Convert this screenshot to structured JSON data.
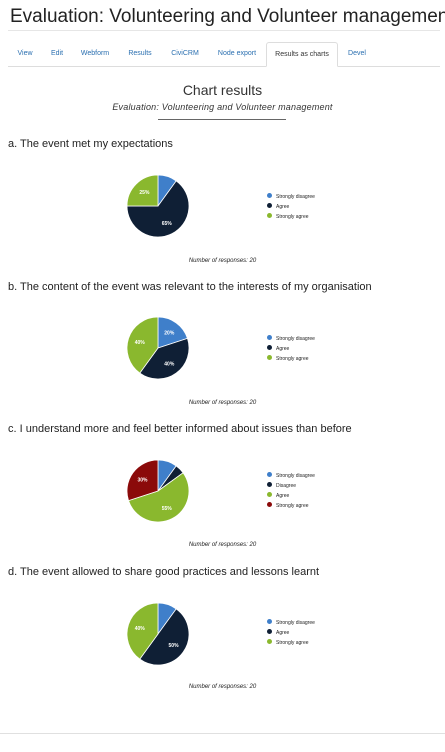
{
  "page": {
    "title": "Evaluation: Volunteering and Volunteer management"
  },
  "tabs": [
    {
      "label": "View",
      "active": false
    },
    {
      "label": "Edit",
      "active": false
    },
    {
      "label": "Webform",
      "active": false
    },
    {
      "label": "Results",
      "active": false
    },
    {
      "label": "CiviCRM",
      "active": false
    },
    {
      "label": "Node export",
      "active": false
    },
    {
      "label": "Results as charts",
      "active": true
    },
    {
      "label": "Devel",
      "active": false
    }
  ],
  "results": {
    "heading": "Chart results",
    "subtitle": "Evaluation: Volunteering and Volunteer management"
  },
  "colors": {
    "strongly_disagree": "#3f7fca",
    "disagree": "#0f1f35",
    "agree": "#0f1f35",
    "agree_light": "#8ab82e",
    "strongly_agree": "#8ab82e",
    "strongly_agree_red": "#8b0a0a"
  },
  "chart_data": [
    {
      "type": "pie",
      "title": "a. The event met my expectations",
      "categories": [
        "Strongly disagree",
        "Agree",
        "Strongly agree"
      ],
      "values": [
        10,
        65,
        25
      ],
      "data_labels": [
        "",
        "65%",
        "25%"
      ],
      "colors": [
        "#3f7fca",
        "#0f1f35",
        "#8ab82e"
      ],
      "responses_text": "Number of responses: 20"
    },
    {
      "type": "pie",
      "title": "b. The content of the event was relevant to the interests of my organisation",
      "categories": [
        "Strongly disagree",
        "Agree",
        "Strongly agree"
      ],
      "values": [
        20,
        40,
        40
      ],
      "data_labels": [
        "20%",
        "40%",
        "40%"
      ],
      "colors": [
        "#3f7fca",
        "#0f1f35",
        "#8ab82e"
      ],
      "responses_text": "Number of responses: 20"
    },
    {
      "type": "pie",
      "title": "c. I understand more and feel better informed about issues than before",
      "categories": [
        "Strongly disagree",
        "Disagree",
        "Agree",
        "Strongly agree"
      ],
      "values": [
        10,
        5,
        55,
        30
      ],
      "data_labels": [
        "",
        "",
        "55%",
        "30%"
      ],
      "colors": [
        "#3f7fca",
        "#0f1f35",
        "#8ab82e",
        "#8b0a0a"
      ],
      "responses_text": "Number of responses: 20"
    },
    {
      "type": "pie",
      "title": "d. The event allowed to share good practices and lessons learnt",
      "categories": [
        "Strongly disagree",
        "Agree",
        "Strongly agree"
      ],
      "values": [
        10,
        50,
        40
      ],
      "data_labels": [
        "",
        "50%",
        "40%"
      ],
      "colors": [
        "#3f7fca",
        "#0f1f35",
        "#8ab82e"
      ],
      "responses_text": "Number of responses: 20"
    }
  ]
}
